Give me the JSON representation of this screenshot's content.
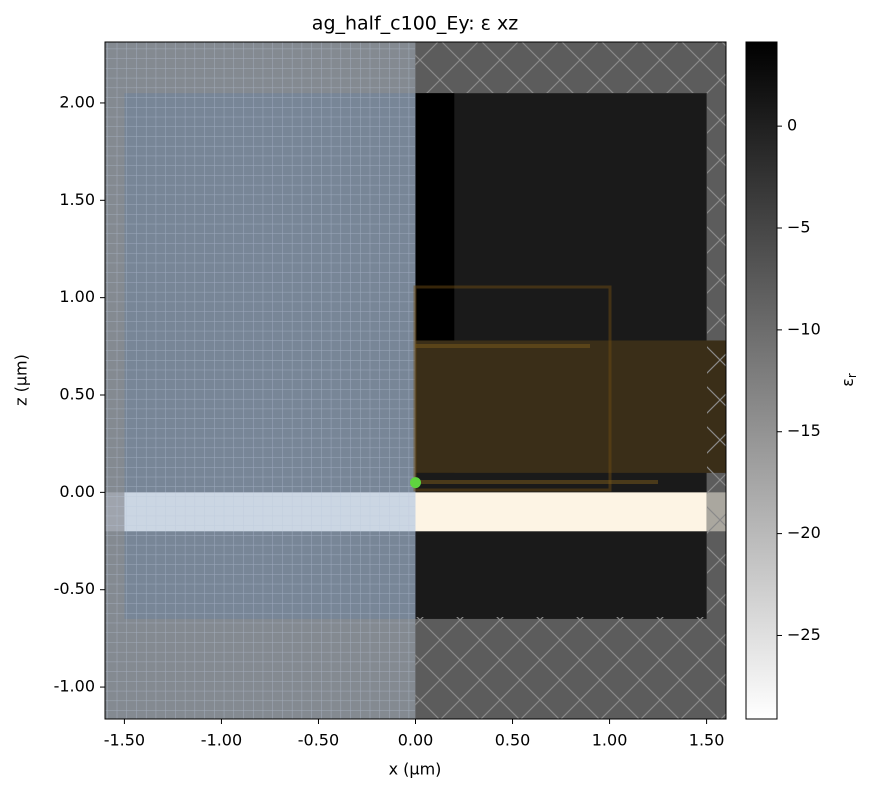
{
  "chart_data": {
    "type": "permittivity",
    "title": "ag_half_c100_Ey: ε xz",
    "x_label": "x (µm)",
    "y_label": "z (µm)",
    "xlim": [
      -1.6,
      1.6
    ],
    "ylim": [
      -1.164,
      2.313
    ],
    "xticks": [
      {
        "value": -1.5,
        "label": "-1.50"
      },
      {
        "value": -1.0,
        "label": "-1.00"
      },
      {
        "value": -0.5,
        "label": "-0.50"
      },
      {
        "value": 0,
        "label": "0.00"
      },
      {
        "value": 0.5,
        "label": "0.50"
      },
      {
        "value": 1.0,
        "label": "1.00"
      },
      {
        "value": 1.5,
        "label": "1.50"
      }
    ],
    "yticks": [
      {
        "value": -1.0,
        "label": "-1.00"
      },
      {
        "value": -0.5,
        "label": "-0.50"
      },
      {
        "value": 0,
        "label": "0.00"
      },
      {
        "value": 0.5,
        "label": "0.50"
      },
      {
        "value": 1.0,
        "label": "1.00"
      },
      {
        "value": 1.5,
        "label": "1.50"
      },
      {
        "value": 2.0,
        "label": "2.00"
      }
    ],
    "regions": [
      {
        "x": [
          -1.6,
          0
        ],
        "z": [
          -1.164,
          2.313
        ],
        "color": "#7c8086"
      },
      {
        "x": [
          0,
          1.6
        ],
        "z": [
          -1.164,
          2.313
        ],
        "color": "#5c5c5c"
      },
      {
        "x": [
          -1.5,
          0
        ],
        "z": [
          -0.65,
          2.05
        ],
        "color": "#6e7b8d"
      },
      {
        "x": [
          0,
          1.5
        ],
        "z": [
          -0.65,
          2.05
        ],
        "color": "#1a1a1a"
      },
      {
        "x": [
          0,
          0.2
        ],
        "z": [
          0.1,
          2.05
        ],
        "color": "#000000"
      },
      {
        "x": [
          -1.6,
          -1.5
        ],
        "z": [
          -0.2,
          0
        ],
        "color": "#9a9ea6"
      },
      {
        "x": [
          -1.5,
          0
        ],
        "z": [
          -0.2,
          0
        ],
        "color": "#ccd6e3"
      },
      {
        "x": [
          0,
          1.5
        ],
        "z": [
          -0.2,
          0
        ],
        "color": "#fdf4e4"
      },
      {
        "x": [
          1.5,
          1.6
        ],
        "z": [
          -0.2,
          0
        ],
        "color": "#aaa79f"
      },
      {
        "x": [
          0,
          1.6
        ],
        "z": [
          0.1,
          0.78
        ],
        "color": "#3a2e18"
      }
    ],
    "point": {
      "x": 0,
      "z": 0.05,
      "color": "#5fd33f"
    },
    "colorbar": {
      "clim": [
        -29.1,
        4.13
      ],
      "ticks": [
        0,
        {
          "value": -5,
          "label": "−5"
        },
        {
          "value": -10,
          "label": "−10"
        },
        {
          "value": -15,
          "label": "−15"
        },
        {
          "value": -20,
          "label": "−20"
        },
        {
          "value": -25,
          "label": "−25"
        }
      ],
      "label": "ε",
      "label_subscript": "r"
    }
  }
}
